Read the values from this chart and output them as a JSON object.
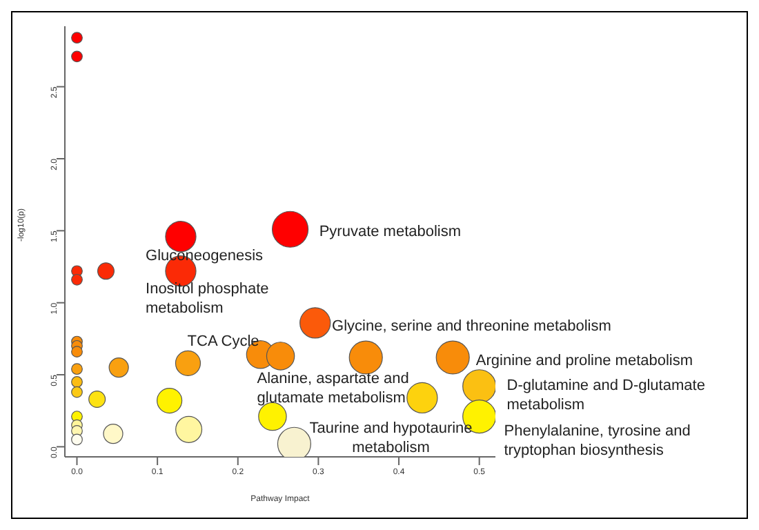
{
  "chart_data": {
    "type": "bubble",
    "xlabel": "Pathway Impact",
    "ylabel": "-log10(p)",
    "x": [
      0,
      0,
      0.129,
      0.265,
      0.129,
      0.036,
      0,
      0,
      0,
      0,
      0,
      0,
      0.052,
      0,
      0,
      0.296,
      0.138,
      0.228,
      0.253,
      0.359,
      0.467,
      0.025,
      0.115,
      0.429,
      0.5,
      0.5,
      0.243,
      0,
      0,
      0,
      0.045,
      0.139,
      0.27,
      0
    ],
    "values": [
      2.84,
      2.71,
      1.46,
      1.51,
      1.22,
      1.22,
      1.22,
      1.16,
      0.73,
      0.7,
      0.66,
      0.54,
      0.55,
      0.45,
      0.38,
      0.86,
      0.58,
      0.64,
      0.63,
      0.62,
      0.62,
      0.33,
      0.32,
      0.34,
      0.42,
      0.21,
      0.21,
      0.21,
      0.15,
      0.11,
      0.09,
      0.12,
      0.02,
      0.05
    ],
    "sizes": [
      0.09,
      0.09,
      0.72,
      1,
      0.72,
      0.21,
      0.09,
      0.09,
      0.09,
      0.09,
      0.09,
      0.09,
      0.29,
      0.09,
      0.09,
      0.72,
      0.48,
      0.6,
      0.6,
      0.85,
      0.85,
      0.21,
      0.48,
      0.72,
      0.85,
      0.85,
      0.6,
      0.09,
      0.09,
      0.09,
      0.29,
      0.53,
      0.85,
      0.09
    ],
    "colors": [
      "#ff0000",
      "#ff0000",
      "#ff0000",
      "#ff0000",
      "#fb2a06",
      "#fb2a06",
      "#fb2a06",
      "#fb2a06",
      "#f88c0a",
      "#f88c0a",
      "#f88c0a",
      "#f9a010",
      "#f9a010",
      "#fbbc12",
      "#fbc914",
      "#fb5a0a",
      "#f9a010",
      "#f88c0a",
      "#f88c0a",
      "#f88c0a",
      "#f88c0a",
      "#fde212",
      "#fff200",
      "#fdd20e",
      "#fbc012",
      "#fff200",
      "#fff200",
      "#fff200",
      "#fff59a",
      "#fff6b0",
      "#fff8c8",
      "#fff6a0",
      "#f8f2d0",
      "#fefcee"
    ],
    "xlim": [
      -0.015,
      0.52
    ],
    "ylim": [
      -0.07,
      2.92
    ],
    "xticks": [
      {
        "value": 0,
        "label": "0.0"
      },
      0.1,
      0.2,
      0.3,
      0.4,
      0.5
    ],
    "yticks": [
      {
        "value": 0,
        "label": "0.0"
      },
      0.5,
      {
        "value": 1,
        "label": "1.0"
      },
      1.5,
      {
        "value": 2,
        "label": "2.0"
      },
      2.5
    ],
    "grid": false,
    "legend": false,
    "annotations": [
      {
        "text": "Pyruvate metabolism",
        "x": 0.265,
        "y": 1.51
      },
      {
        "text": "Gluconeogenesis",
        "x": 0.129,
        "y": 1.46
      },
      {
        "text": "Inositol phosphate metabolism",
        "x": 0.129,
        "y": 1.22
      },
      {
        "text": "Glycine, serine and threonine metabolism",
        "x": 0.296,
        "y": 0.86
      },
      {
        "text": "TCA Cycle",
        "x": 0.138,
        "y": 0.58
      },
      {
        "text": "Alanine, aspartate and glutamate metabolism",
        "x": 0.253,
        "y": 0.63
      },
      {
        "text": "Arginine and proline metabolism",
        "x": 0.467,
        "y": 0.62
      },
      {
        "text": "D-glutamine and D-glutamate metabolism",
        "x": 0.5,
        "y": 0.42
      },
      {
        "text": "Phenylalanine, tyrosine and tryptophan biosynthesis",
        "x": 0.5,
        "y": 0.21
      },
      {
        "text": "Taurine and hypotaurine metabolism",
        "x": 0.27,
        "y": 0.02
      }
    ]
  }
}
